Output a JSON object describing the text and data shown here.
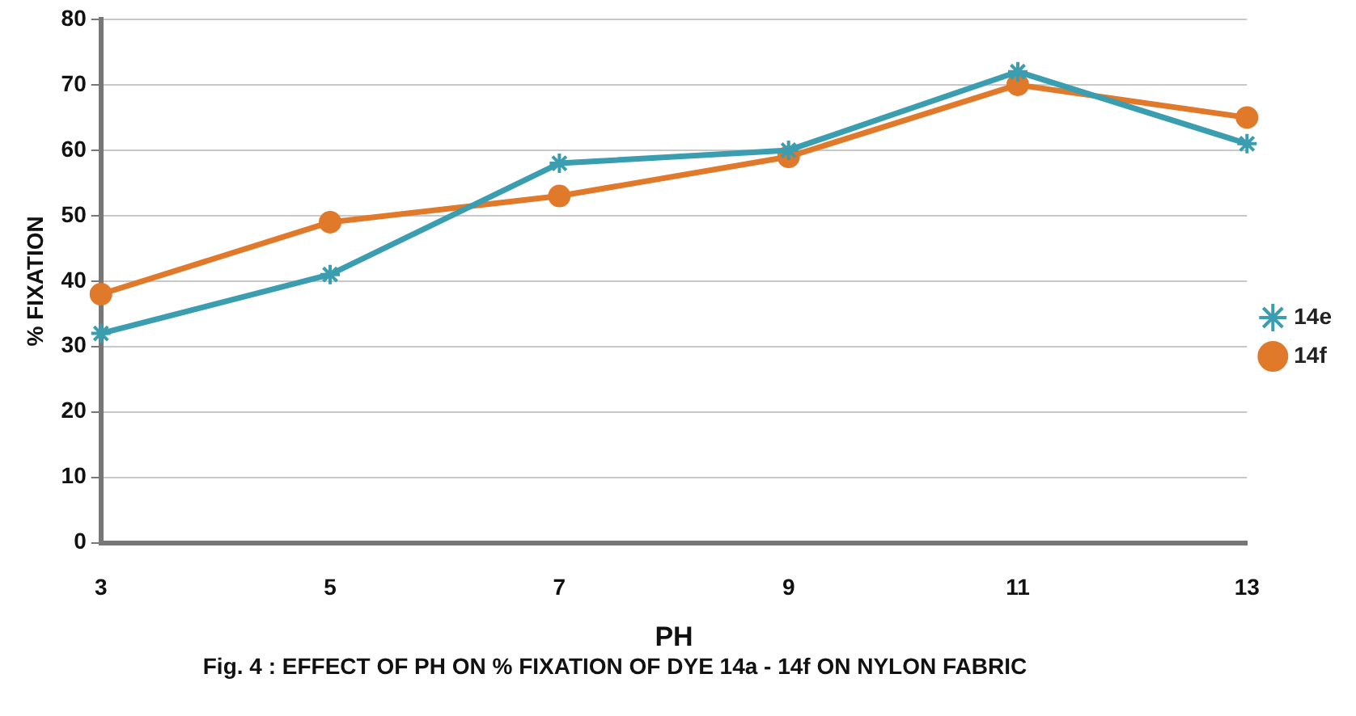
{
  "chart_data": {
    "type": "line",
    "xlabel": "PH",
    "ylabel": "% FIXATION",
    "categories": [
      "3",
      "5",
      "7",
      "9",
      "11",
      "13"
    ],
    "series": [
      {
        "name": "14e",
        "color": "#3a9db0",
        "marker": "cross",
        "values": [
          32,
          41,
          58,
          60,
          72,
          61
        ]
      },
      {
        "name": "14f",
        "color": "#e0792a",
        "marker": "circle",
        "values": [
          38,
          49,
          53,
          59,
          70,
          65
        ]
      }
    ],
    "ylim": [
      0,
      80
    ],
    "yticks": [
      0,
      10,
      20,
      30,
      40,
      50,
      60,
      70,
      80
    ],
    "grid": "y",
    "legend": "right",
    "line_style": "solid",
    "annotations": [
      "Fig. 4 : EFFECT OF PH ON % FIXATION OF DYE 14a - 14f ON NYLON FABRIC"
    ]
  }
}
